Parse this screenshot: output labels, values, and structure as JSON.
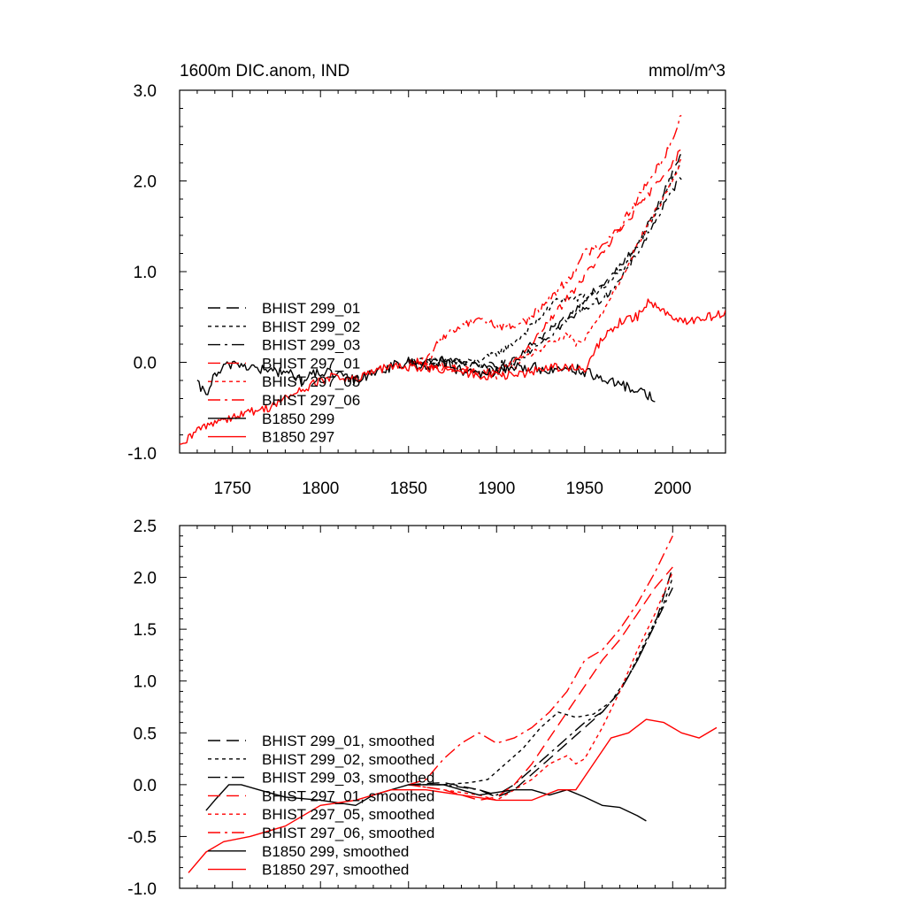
{
  "figure": {
    "title_left": "1600m DIC.anom, IND",
    "title_right": "mmol/m^3"
  },
  "styles": {
    "BHIST 299_01": {
      "color": "#000000",
      "dash": "14,7"
    },
    "BHIST 299_02": {
      "color": "#000000",
      "dash": "4,4"
    },
    "BHIST 299_03": {
      "color": "#000000",
      "dash": "14,5,3,5"
    },
    "BHIST 297_01": {
      "color": "#ff0000",
      "dash": "14,7"
    },
    "BHIST 297_05": {
      "color": "#ff0000",
      "dash": "4,4"
    },
    "BHIST 297_06": {
      "color": "#ff0000",
      "dash": "14,5,3,5"
    },
    "B1850 299": {
      "color": "#000000",
      "dash": ""
    },
    "B1850 297": {
      "color": "#ff0000",
      "dash": ""
    }
  },
  "chart_data": [
    {
      "type": "line",
      "xlim": [
        1720,
        2030
      ],
      "ylim": [
        -1.0,
        3.0
      ],
      "xticks": [
        1750,
        1800,
        1850,
        1900,
        1950,
        2000
      ],
      "xtick_labels": [
        "1750",
        "1800",
        "1850",
        "1900",
        "1950",
        "2000"
      ],
      "yticks": [
        -1.0,
        0.0,
        1.0,
        2.0,
        3.0
      ],
      "ytick_labels": [
        "-1.0",
        "0.0",
        "1.0",
        "2.0",
        "3.0"
      ],
      "legend_position": "lower-left",
      "series": [
        {
          "name": "BHIST 299_01",
          "style": "BHIST 299_01",
          "noise": 0.04,
          "x": [
            1850,
            1870,
            1890,
            1900,
            1910,
            1920,
            1930,
            1940,
            1950,
            1960,
            1970,
            1980,
            1990,
            2000,
            2005
          ],
          "y": [
            0.0,
            0.02,
            -0.02,
            -0.05,
            0.05,
            0.2,
            0.35,
            0.5,
            0.7,
            0.85,
            1.05,
            1.3,
            1.65,
            2.1,
            2.3
          ]
        },
        {
          "name": "BHIST 299_02",
          "style": "BHIST 299_02",
          "noise": 0.04,
          "x": [
            1850,
            1870,
            1885,
            1895,
            1905,
            1915,
            1925,
            1935,
            1945,
            1955,
            1965,
            1975,
            1985,
            1995,
            2005
          ],
          "y": [
            0.0,
            0.02,
            0.0,
            0.05,
            0.15,
            0.3,
            0.5,
            0.7,
            0.7,
            0.75,
            0.9,
            1.1,
            1.45,
            1.85,
            2.2
          ]
        },
        {
          "name": "BHIST 299_03",
          "style": "BHIST 299_03",
          "noise": 0.04,
          "x": [
            1850,
            1870,
            1890,
            1900,
            1910,
            1920,
            1930,
            1940,
            1950,
            1960,
            1970,
            1980,
            1990,
            2000,
            2005
          ],
          "y": [
            0.0,
            0.03,
            -0.05,
            -0.1,
            0.0,
            0.15,
            0.3,
            0.45,
            0.6,
            0.7,
            0.9,
            1.2,
            1.55,
            1.9,
            2.05
          ]
        },
        {
          "name": "BHIST 297_01",
          "style": "BHIST 297_01",
          "noise": 0.04,
          "x": [
            1850,
            1870,
            1890,
            1900,
            1910,
            1920,
            1930,
            1940,
            1950,
            1960,
            1970,
            1980,
            1990,
            2000,
            2005
          ],
          "y": [
            0.0,
            -0.05,
            -0.1,
            -0.1,
            0.0,
            0.2,
            0.45,
            0.7,
            0.95,
            1.2,
            1.45,
            1.7,
            1.95,
            2.2,
            2.35
          ]
        },
        {
          "name": "BHIST 297_05",
          "style": "BHIST 297_05",
          "noise": 0.04,
          "x": [
            1850,
            1870,
            1890,
            1900,
            1910,
            1920,
            1930,
            1940,
            1945,
            1950,
            1960,
            1970,
            1980,
            1990,
            2000,
            2005
          ],
          "y": [
            0.0,
            -0.05,
            -0.1,
            -0.15,
            -0.05,
            0.1,
            0.2,
            0.3,
            0.2,
            0.25,
            0.55,
            0.9,
            1.3,
            1.65,
            2.0,
            2.25
          ]
        },
        {
          "name": "BHIST 297_06",
          "style": "BHIST 297_06",
          "noise": 0.05,
          "x": [
            1850,
            1860,
            1870,
            1880,
            1890,
            1900,
            1910,
            1920,
            1930,
            1940,
            1950,
            1960,
            1970,
            1980,
            1990,
            2000,
            2005
          ],
          "y": [
            0.0,
            0.0,
            0.3,
            0.4,
            0.5,
            0.4,
            0.4,
            0.5,
            0.7,
            0.9,
            1.2,
            1.3,
            1.5,
            1.8,
            2.1,
            2.45,
            2.75
          ]
        },
        {
          "name": "B1850 299",
          "style": "B1850 299",
          "noise": 0.06,
          "x": [
            1730,
            1735,
            1740,
            1750,
            1760,
            1770,
            1780,
            1790,
            1800,
            1810,
            1820,
            1830,
            1840,
            1850,
            1860,
            1870,
            1880,
            1890,
            1900,
            1910,
            1920,
            1930,
            1940,
            1950,
            1960,
            1970,
            1980,
            1990
          ],
          "y": [
            -0.25,
            -0.35,
            -0.15,
            0.0,
            -0.05,
            -0.1,
            -0.1,
            -0.2,
            -0.1,
            -0.15,
            -0.2,
            -0.1,
            -0.05,
            0.0,
            -0.05,
            0.0,
            -0.1,
            -0.15,
            -0.1,
            -0.05,
            -0.05,
            -0.1,
            -0.05,
            -0.1,
            -0.2,
            -0.25,
            -0.3,
            -0.4
          ]
        },
        {
          "name": "B1850 297",
          "style": "B1850 297",
          "noise": 0.05,
          "x": [
            1720,
            1730,
            1740,
            1750,
            1760,
            1770,
            1780,
            1790,
            1800,
            1810,
            1820,
            1830,
            1840,
            1850,
            1860,
            1870,
            1880,
            1890,
            1900,
            1910,
            1920,
            1930,
            1940,
            1950,
            1955,
            1960,
            1970,
            1980,
            1985,
            1990,
            2000,
            2010,
            2020,
            2030
          ],
          "y": [
            -0.95,
            -0.75,
            -0.65,
            -0.6,
            -0.55,
            -0.5,
            -0.4,
            -0.3,
            -0.2,
            -0.15,
            -0.2,
            -0.1,
            -0.05,
            -0.05,
            -0.05,
            -0.1,
            -0.1,
            -0.15,
            -0.15,
            -0.15,
            -0.1,
            -0.05,
            -0.05,
            -0.1,
            0.1,
            0.25,
            0.45,
            0.5,
            0.65,
            0.65,
            0.5,
            0.45,
            0.5,
            0.55
          ]
        }
      ],
      "legend": [
        {
          "label": "BHIST 299_01",
          "style": "BHIST 299_01"
        },
        {
          "label": "BHIST 299_02",
          "style": "BHIST 299_02"
        },
        {
          "label": "BHIST 299_03",
          "style": "BHIST 299_03"
        },
        {
          "label": "BHIST 297_01",
          "style": "BHIST 297_01"
        },
        {
          "label": "BHIST 297_05",
          "style": "BHIST 297_05"
        },
        {
          "label": "BHIST 297_06",
          "style": "BHIST 297_06"
        },
        {
          "label": "B1850 299",
          "style": "B1850 299"
        },
        {
          "label": "B1850 297",
          "style": "B1850 297"
        }
      ]
    },
    {
      "type": "line",
      "xlim": [
        1720,
        2030
      ],
      "ylim": [
        -1.0,
        2.5
      ],
      "xticks": [
        1750,
        1800,
        1850,
        1900,
        1950,
        2000
      ],
      "xtick_labels": [],
      "yticks": [
        -1.0,
        -0.5,
        0.0,
        0.5,
        1.0,
        1.5,
        2.0,
        2.5
      ],
      "ytick_labels": [
        "-1.0",
        "-0.5",
        "0.0",
        "0.5",
        "1.0",
        "1.5",
        "2.0",
        "2.5"
      ],
      "legend_position": "lower-left",
      "series": [
        {
          "name": "BHIST 299_01, smoothed",
          "style": "BHIST 299_01",
          "x": [
            1850,
            1870,
            1890,
            1900,
            1910,
            1920,
            1930,
            1940,
            1950,
            1960,
            1970,
            1980,
            1990,
            2000
          ],
          "y": [
            0.0,
            0.02,
            -0.05,
            -0.12,
            -0.05,
            0.1,
            0.25,
            0.4,
            0.55,
            0.7,
            0.9,
            1.2,
            1.55,
            2.1
          ]
        },
        {
          "name": "BHIST 299_02, smoothed",
          "style": "BHIST 299_02",
          "x": [
            1850,
            1870,
            1885,
            1895,
            1905,
            1915,
            1925,
            1935,
            1945,
            1955,
            1965,
            1975,
            1985,
            1995,
            2000
          ],
          "y": [
            0.0,
            0.0,
            0.02,
            0.05,
            0.2,
            0.35,
            0.55,
            0.7,
            0.65,
            0.68,
            0.8,
            1.05,
            1.4,
            1.75,
            2.0
          ]
        },
        {
          "name": "BHIST 299_03, smoothed",
          "style": "BHIST 299_03",
          "x": [
            1850,
            1870,
            1890,
            1900,
            1910,
            1920,
            1930,
            1940,
            1950,
            1960,
            1970,
            1980,
            1990,
            2000
          ],
          "y": [
            0.0,
            0.0,
            -0.05,
            -0.1,
            0.0,
            0.15,
            0.3,
            0.45,
            0.6,
            0.7,
            0.9,
            1.2,
            1.55,
            1.9
          ]
        },
        {
          "name": "BHIST 297_01, smoothed",
          "style": "BHIST 297_01",
          "x": [
            1850,
            1870,
            1890,
            1900,
            1910,
            1920,
            1930,
            1940,
            1950,
            1960,
            1970,
            1980,
            1990,
            2000
          ],
          "y": [
            0.0,
            -0.05,
            -0.15,
            -0.12,
            0.0,
            0.2,
            0.45,
            0.7,
            0.95,
            1.2,
            1.4,
            1.65,
            1.9,
            2.1
          ]
        },
        {
          "name": "BHIST 297_05, smoothed",
          "style": "BHIST 297_05",
          "x": [
            1850,
            1870,
            1890,
            1900,
            1910,
            1920,
            1930,
            1940,
            1945,
            1950,
            1960,
            1970,
            1980,
            1990,
            2000
          ],
          "y": [
            0.0,
            -0.05,
            -0.1,
            -0.15,
            -0.05,
            0.05,
            0.2,
            0.28,
            0.2,
            0.25,
            0.55,
            0.9,
            1.3,
            1.65,
            2.05
          ]
        },
        {
          "name": "BHIST 297_06, smoothed",
          "style": "BHIST 297_06",
          "x": [
            1850,
            1860,
            1870,
            1880,
            1890,
            1900,
            1910,
            1920,
            1930,
            1940,
            1950,
            1960,
            1970,
            1980,
            1990,
            2000
          ],
          "y": [
            0.0,
            0.05,
            0.25,
            0.4,
            0.5,
            0.4,
            0.45,
            0.55,
            0.7,
            0.9,
            1.2,
            1.3,
            1.5,
            1.75,
            2.05,
            2.4
          ]
        },
        {
          "name": "B1850 299, smoothed",
          "style": "B1850 299",
          "x": [
            1735,
            1740,
            1748,
            1755,
            1765,
            1780,
            1800,
            1820,
            1830,
            1850,
            1870,
            1890,
            1910,
            1920,
            1930,
            1940,
            1950,
            1960,
            1970,
            1980,
            1985
          ],
          "y": [
            -0.25,
            -0.15,
            0.0,
            0.0,
            -0.05,
            -0.12,
            -0.15,
            -0.2,
            -0.1,
            0.0,
            0.0,
            -0.1,
            -0.05,
            -0.05,
            -0.1,
            -0.05,
            -0.12,
            -0.2,
            -0.22,
            -0.3,
            -0.35
          ]
        },
        {
          "name": "B1850 297, smoothed",
          "style": "B1850 297",
          "x": [
            1725,
            1735,
            1745,
            1760,
            1780,
            1800,
            1820,
            1840,
            1860,
            1880,
            1900,
            1920,
            1935,
            1945,
            1955,
            1965,
            1975,
            1985,
            1995,
            2005,
            2015,
            2025
          ],
          "y": [
            -0.85,
            -0.65,
            -0.55,
            -0.5,
            -0.4,
            -0.2,
            -0.15,
            -0.05,
            -0.05,
            -0.1,
            -0.15,
            -0.15,
            -0.05,
            -0.05,
            0.2,
            0.45,
            0.5,
            0.63,
            0.6,
            0.5,
            0.45,
            0.55
          ]
        }
      ],
      "legend": [
        {
          "label": "BHIST 299_01, smoothed",
          "style": "BHIST 299_01"
        },
        {
          "label": "BHIST 299_02, smoothed",
          "style": "BHIST 299_02"
        },
        {
          "label": "BHIST 299_03, smoothed",
          "style": "BHIST 299_03"
        },
        {
          "label": "BHIST 297_01, smoothed",
          "style": "BHIST 297_01"
        },
        {
          "label": "BHIST 297_05, smoothed",
          "style": "BHIST 297_05"
        },
        {
          "label": "BHIST 297_06, smoothed",
          "style": "BHIST 297_06"
        },
        {
          "label": "B1850 299, smoothed",
          "style": "B1850 299"
        },
        {
          "label": "B1850 297, smoothed",
          "style": "B1850 297"
        }
      ]
    }
  ]
}
